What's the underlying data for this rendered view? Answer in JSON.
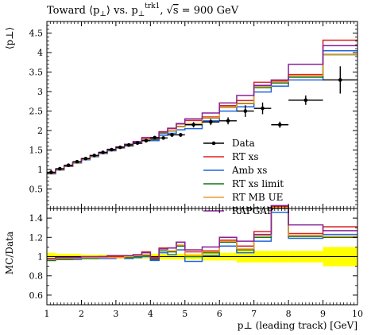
{
  "chart_data": {
    "type": "line",
    "title_parts": [
      "Toward ",
      "⟨p",
      "⊥",
      "⟩ vs. p",
      "⊥",
      "trk1",
      ", √",
      "s",
      " = 900 GeV"
    ],
    "xlabel": "p⊥ (leading track) [GeV]",
    "ylabel_top": "⟨p⊥⟩",
    "ylabel_bottom": "MC/Data",
    "xlim": [
      1,
      10
    ],
    "ylim_top": [
      0,
      4.8
    ],
    "ylim_bottom": [
      0.5,
      1.5
    ],
    "x_ticks": [
      "1",
      "2",
      "3",
      "4",
      "5",
      "6",
      "7",
      "8",
      "9",
      "10"
    ],
    "y_ticks_top": [
      "0.5",
      "1",
      "1.5",
      "2",
      "2.5",
      "3",
      "3.5",
      "4",
      "4.5"
    ],
    "y_ticks_bottom": [
      "0.6",
      "0.8",
      "1",
      "1.2",
      "1.4"
    ],
    "bin_edges": [
      1,
      1.25,
      1.5,
      1.75,
      2,
      2.25,
      2.5,
      2.75,
      3,
      3.25,
      3.5,
      3.75,
      4,
      4.25,
      4.5,
      4.75,
      5,
      5.5,
      6,
      6.5,
      7,
      7.5,
      8,
      9,
      10
    ],
    "data": {
      "name": "Data",
      "x": [
        1.125,
        1.375,
        1.625,
        1.875,
        2.125,
        2.375,
        2.625,
        2.875,
        3.125,
        3.375,
        3.625,
        3.875,
        4.125,
        4.375,
        4.625,
        4.875,
        5.25,
        5.75,
        6.25,
        6.75,
        7.25,
        7.75,
        8.5,
        9.5
      ],
      "y": [
        0.93,
        1.02,
        1.11,
        1.2,
        1.28,
        1.36,
        1.44,
        1.51,
        1.57,
        1.63,
        1.68,
        1.74,
        1.82,
        1.81,
        1.89,
        1.89,
        2.15,
        2.22,
        2.25,
        2.5,
        2.57,
        2.15,
        2.78,
        3.3
      ],
      "yerr": [
        0.02,
        0.02,
        0.02,
        0.02,
        0.02,
        0.02,
        0.02,
        0.02,
        0.02,
        0.02,
        0.03,
        0.03,
        0.03,
        0.04,
        0.05,
        0.05,
        0.07,
        0.08,
        0.09,
        0.15,
        0.15,
        0.08,
        0.12,
        0.35
      ]
    },
    "series": [
      {
        "name": "RT xs",
        "color": "#dd2222",
        "values": [
          0.9,
          1.0,
          1.09,
          1.18,
          1.27,
          1.35,
          1.43,
          1.51,
          1.57,
          1.64,
          1.71,
          1.82,
          1.8,
          1.97,
          2.05,
          2.17,
          2.26,
          2.35,
          2.64,
          2.77,
          3.24,
          3.27,
          3.44,
          4.32
        ],
        "ratio": [
          0.97,
          0.98,
          0.98,
          0.98,
          0.99,
          0.99,
          1.0,
          1.0,
          1.0,
          1.01,
          1.02,
          1.05,
          0.99,
          1.09,
          1.09,
          1.15,
          1.05,
          1.06,
          1.17,
          1.11,
          1.26,
          1.52,
          1.24,
          1.31
        ]
      },
      {
        "name": "Amb xs",
        "color": "#2266dd",
        "values": [
          0.89,
          0.99,
          1.08,
          1.17,
          1.25,
          1.33,
          1.41,
          1.48,
          1.55,
          1.6,
          1.67,
          1.74,
          1.74,
          1.88,
          1.93,
          2.02,
          2.05,
          2.25,
          2.5,
          2.61,
          2.99,
          3.14,
          3.3,
          4.05
        ],
        "ratio": [
          0.96,
          0.97,
          0.97,
          0.97,
          0.98,
          0.98,
          0.98,
          0.98,
          0.99,
          0.98,
          0.99,
          1.0,
          0.96,
          1.04,
          1.02,
          1.07,
          0.95,
          1.01,
          1.11,
          1.04,
          1.16,
          1.46,
          1.19,
          1.23
        ]
      },
      {
        "name": "RT xs limit",
        "color": "#117711",
        "values": [
          0.89,
          0.99,
          1.08,
          1.17,
          1.26,
          1.34,
          1.42,
          1.49,
          1.56,
          1.61,
          1.68,
          1.76,
          1.77,
          1.93,
          1.99,
          2.1,
          2.15,
          2.32,
          2.6,
          2.69,
          3.1,
          3.22,
          3.37,
          3.95
        ],
        "ratio": [
          0.96,
          0.97,
          0.97,
          0.98,
          0.98,
          0.98,
          0.99,
          0.99,
          0.99,
          0.99,
          1.0,
          1.01,
          0.97,
          1.06,
          1.05,
          1.11,
          1.0,
          1.04,
          1.15,
          1.07,
          1.2,
          1.5,
          1.21,
          1.2
        ]
      },
      {
        "name": "RT MB UE",
        "color": "#ee9933",
        "values": [
          0.9,
          1.0,
          1.09,
          1.18,
          1.27,
          1.35,
          1.43,
          1.5,
          1.56,
          1.62,
          1.69,
          1.78,
          1.79,
          1.95,
          2.0,
          2.11,
          2.17,
          2.33,
          2.61,
          2.7,
          3.14,
          3.25,
          3.41,
          3.96
        ],
        "ratio": [
          0.97,
          0.98,
          0.98,
          0.98,
          0.99,
          0.99,
          0.99,
          0.99,
          0.99,
          1.0,
          1.01,
          1.02,
          0.98,
          1.08,
          1.06,
          1.12,
          1.01,
          1.05,
          1.16,
          1.08,
          1.22,
          1.51,
          1.22,
          1.21
        ]
      },
      {
        "name": "RAPGAP",
        "color": "#882299",
        "values": [
          0.91,
          1.01,
          1.1,
          1.19,
          1.28,
          1.36,
          1.44,
          1.52,
          1.58,
          1.65,
          1.72,
          1.81,
          1.79,
          1.96,
          2.06,
          2.18,
          2.3,
          2.45,
          2.71,
          2.9,
          3.16,
          3.3,
          3.7,
          4.18
        ],
        "ratio": [
          0.98,
          0.99,
          0.99,
          0.99,
          1.0,
          1.0,
          1.0,
          1.01,
          1.01,
          1.01,
          1.02,
          1.04,
          0.98,
          1.08,
          1.09,
          1.15,
          1.07,
          1.1,
          1.2,
          1.16,
          1.23,
          1.53,
          1.33,
          1.27
        ]
      }
    ],
    "band": [
      0.04,
      0.03,
      0.03,
      0.03,
      0.02,
      0.02,
      0.02,
      0.02,
      0.02,
      0.02,
      0.02,
      0.02,
      0.03,
      0.03,
      0.03,
      0.03,
      0.03,
      0.04,
      0.04,
      0.06,
      0.06,
      0.06,
      0.06,
      0.1
    ],
    "legend": [
      "Data",
      "RT xs",
      "Amb xs",
      "RT xs limit",
      "RT MB UE",
      "RAPGAP"
    ],
    "band_color": "#ffff00",
    "legend_position": "bottom-right of top panel"
  }
}
